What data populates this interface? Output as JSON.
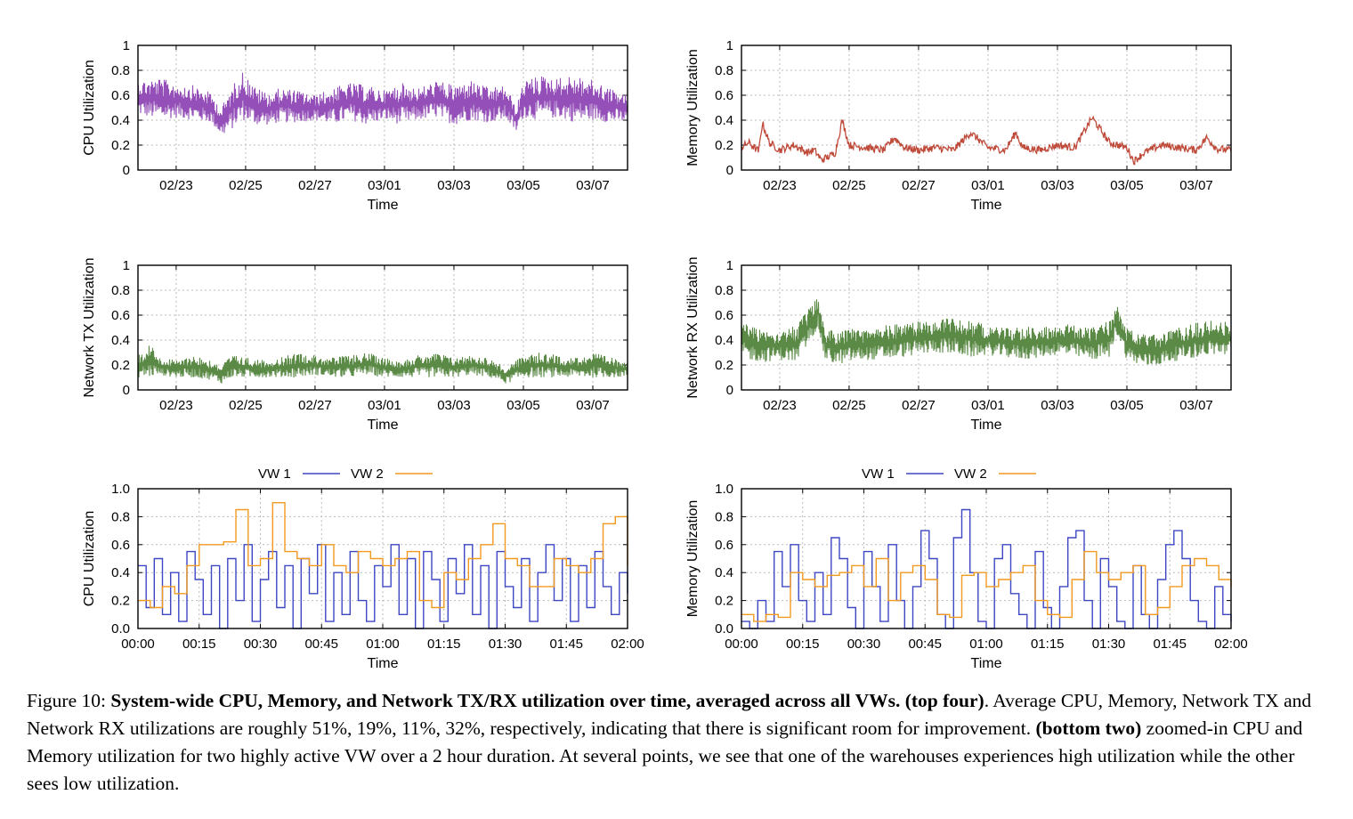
{
  "chart_data": [
    {
      "id": "cpu",
      "type": "line",
      "xlabel": "Time",
      "ylabel": "CPU Utilization",
      "ylim": [
        0,
        1
      ],
      "yticks": [
        "0",
        "0.2",
        "0.4",
        "0.6",
        "0.8",
        "1"
      ],
      "xticks": [
        "02/23",
        "02/25",
        "02/27",
        "03/01",
        "03/03",
        "03/05",
        "03/07"
      ],
      "xlim_days": [
        -1.1,
        13
      ],
      "grid": true,
      "series": [
        {
          "color": "#9450b8",
          "band": true,
          "x": [
            -1.1,
            -0.5,
            0,
            0.5,
            1,
            1.3,
            1.5,
            1.9,
            2.3,
            2.7,
            3,
            3.5,
            4,
            4.5,
            5,
            5.5,
            6,
            6.5,
            7,
            7.5,
            8,
            8.5,
            9,
            9.5,
            9.8,
            10,
            10.5,
            11,
            11.5,
            12,
            12.5,
            13
          ],
          "low": [
            0.44,
            0.4,
            0.42,
            0.4,
            0.38,
            0.27,
            0.3,
            0.4,
            0.36,
            0.36,
            0.38,
            0.38,
            0.4,
            0.36,
            0.4,
            0.36,
            0.4,
            0.36,
            0.4,
            0.42,
            0.36,
            0.4,
            0.38,
            0.4,
            0.3,
            0.42,
            0.4,
            0.42,
            0.38,
            0.4,
            0.38,
            0.38
          ],
          "high": [
            0.72,
            0.74,
            0.7,
            0.68,
            0.62,
            0.5,
            0.62,
            0.8,
            0.66,
            0.62,
            0.66,
            0.64,
            0.6,
            0.66,
            0.7,
            0.68,
            0.64,
            0.7,
            0.66,
            0.72,
            0.68,
            0.72,
            0.66,
            0.68,
            0.5,
            0.72,
            0.76,
            0.74,
            0.76,
            0.72,
            0.66,
            0.6
          ]
        }
      ]
    },
    {
      "id": "mem",
      "type": "line",
      "xlabel": "Time",
      "ylabel": "Memory Utilization",
      "ylim": [
        0,
        1
      ],
      "yticks": [
        "0",
        "0.2",
        "0.4",
        "0.6",
        "0.8",
        "1"
      ],
      "xticks": [
        "02/23",
        "02/25",
        "02/27",
        "03/01",
        "03/03",
        "03/05",
        "03/07"
      ],
      "xlim_days": [
        -1.1,
        13
      ],
      "grid": true,
      "series": [
        {
          "color": "#bf4a3a",
          "band": false,
          "x": [
            -1.1,
            -0.9,
            -0.6,
            -0.5,
            -0.3,
            0,
            0.4,
            0.8,
            1,
            1.2,
            1.5,
            1.6,
            1.8,
            2,
            2.5,
            3,
            3.3,
            3.6,
            4,
            4.5,
            5,
            5.5,
            6,
            6.5,
            6.8,
            7,
            7.5,
            8,
            8.5,
            9,
            9.5,
            10,
            10.2,
            10.5,
            11,
            11.5,
            12,
            12.3,
            12.6,
            13
          ],
          "y": [
            0.18,
            0.22,
            0.15,
            0.38,
            0.22,
            0.16,
            0.2,
            0.14,
            0.16,
            0.08,
            0.12,
            0.14,
            0.4,
            0.2,
            0.18,
            0.16,
            0.26,
            0.18,
            0.16,
            0.18,
            0.16,
            0.3,
            0.18,
            0.16,
            0.3,
            0.18,
            0.16,
            0.2,
            0.18,
            0.42,
            0.22,
            0.18,
            0.07,
            0.14,
            0.2,
            0.18,
            0.16,
            0.26,
            0.17,
            0.16
          ]
        }
      ]
    },
    {
      "id": "tx",
      "type": "line",
      "xlabel": "Time",
      "ylabel": "Network TX Utilization",
      "ylim": [
        0,
        1
      ],
      "yticks": [
        "0",
        "0.2",
        "0.4",
        "0.6",
        "0.8",
        "1"
      ],
      "xticks": [
        "02/23",
        "02/25",
        "02/27",
        "03/01",
        "03/03",
        "03/05",
        "03/07"
      ],
      "xlim_days": [
        -1.1,
        13
      ],
      "grid": true,
      "series": [
        {
          "color": "#5a8a45",
          "band": true,
          "x": [
            -1.1,
            -0.7,
            -0.5,
            0,
            0.5,
            1,
            1.3,
            1.6,
            2,
            2.5,
            3,
            3.5,
            4,
            4.5,
            5,
            5.5,
            6,
            6.5,
            7,
            7.5,
            8,
            8.5,
            9,
            9.5,
            10,
            10.5,
            11,
            11.5,
            12,
            12.5,
            13
          ],
          "low": [
            0.1,
            0.1,
            0.12,
            0.1,
            0.1,
            0.08,
            0.05,
            0.1,
            0.1,
            0.1,
            0.1,
            0.1,
            0.12,
            0.1,
            0.1,
            0.12,
            0.1,
            0.1,
            0.1,
            0.1,
            0.1,
            0.12,
            0.1,
            0.05,
            0.1,
            0.1,
            0.1,
            0.1,
            0.1,
            0.1,
            0.1
          ],
          "high": [
            0.28,
            0.38,
            0.26,
            0.24,
            0.28,
            0.24,
            0.2,
            0.28,
            0.26,
            0.24,
            0.26,
            0.3,
            0.28,
            0.26,
            0.28,
            0.3,
            0.26,
            0.24,
            0.28,
            0.3,
            0.26,
            0.28,
            0.26,
            0.18,
            0.28,
            0.3,
            0.28,
            0.26,
            0.3,
            0.26,
            0.24
          ]
        }
      ]
    },
    {
      "id": "rx",
      "type": "line",
      "xlabel": "Time",
      "ylabel": "Network RX Utilization",
      "ylim": [
        0,
        1
      ],
      "yticks": [
        "0",
        "0.2",
        "0.4",
        "0.6",
        "0.8",
        "1"
      ],
      "xticks": [
        "02/23",
        "02/25",
        "02/27",
        "03/01",
        "03/03",
        "03/05",
        "03/07"
      ],
      "xlim_days": [
        -1.1,
        13
      ],
      "grid": true,
      "series": [
        {
          "color": "#5a8a45",
          "band": true,
          "x": [
            -1.1,
            -0.5,
            0,
            0.5,
            0.9,
            1.1,
            1.3,
            1.6,
            2,
            2.5,
            3,
            3.5,
            4,
            4.5,
            5,
            5.5,
            6,
            6.5,
            7,
            7.5,
            8,
            8.5,
            9,
            9.5,
            9.7,
            10,
            10.3,
            10.6,
            11,
            11.5,
            12,
            12.5,
            13
          ],
          "low": [
            0.25,
            0.22,
            0.24,
            0.22,
            0.4,
            0.5,
            0.24,
            0.2,
            0.22,
            0.24,
            0.24,
            0.26,
            0.28,
            0.3,
            0.28,
            0.26,
            0.28,
            0.26,
            0.24,
            0.26,
            0.28,
            0.26,
            0.24,
            0.26,
            0.45,
            0.24,
            0.2,
            0.18,
            0.2,
            0.24,
            0.26,
            0.28,
            0.28
          ],
          "high": [
            0.55,
            0.5,
            0.48,
            0.52,
            0.68,
            0.75,
            0.5,
            0.48,
            0.5,
            0.48,
            0.52,
            0.54,
            0.55,
            0.56,
            0.6,
            0.56,
            0.52,
            0.5,
            0.52,
            0.5,
            0.54,
            0.52,
            0.5,
            0.56,
            0.7,
            0.5,
            0.46,
            0.44,
            0.46,
            0.5,
            0.54,
            0.56,
            0.54
          ]
        }
      ]
    },
    {
      "id": "zcpu",
      "type": "line",
      "xlabel": "Time",
      "ylabel": "CPU Utilization",
      "ylim": [
        0,
        1
      ],
      "yticks": [
        "0.0",
        "0.2",
        "0.4",
        "0.6",
        "0.8",
        "1.0"
      ],
      "xticks": [
        "00:00",
        "00:15",
        "00:30",
        "00:45",
        "01:00",
        "01:15",
        "01:30",
        "01:45",
        "02:00"
      ],
      "xlim_minutes": [
        0,
        120
      ],
      "grid": true,
      "legend": "top-center",
      "series": [
        {
          "name": "VW 1",
          "color": "#3d47c4",
          "step": true,
          "x": [
            0,
            2,
            4,
            6,
            8,
            10,
            12,
            14,
            16,
            18,
            20,
            22,
            24,
            26,
            28,
            30,
            32,
            34,
            36,
            38,
            40,
            42,
            44,
            46,
            48,
            50,
            52,
            54,
            56,
            58,
            60,
            62,
            64,
            66,
            68,
            70,
            72,
            74,
            76,
            78,
            80,
            82,
            84,
            86,
            88,
            90,
            92,
            94,
            96,
            98,
            100,
            102,
            104,
            106,
            108,
            110,
            112,
            114,
            116,
            118,
            120
          ],
          "y": [
            0.45,
            0.15,
            0.5,
            0.1,
            0.4,
            0.05,
            0.55,
            0.35,
            0.1,
            0.45,
            0.0,
            0.5,
            0.2,
            0.6,
            0.05,
            0.35,
            0.55,
            0.15,
            0.45,
            0.0,
            0.5,
            0.25,
            0.6,
            0.05,
            0.4,
            0.1,
            0.55,
            0.2,
            0.05,
            0.45,
            0.3,
            0.6,
            0.1,
            0.5,
            0.0,
            0.55,
            0.35,
            0.05,
            0.5,
            0.25,
            0.6,
            0.1,
            0.45,
            0.0,
            0.55,
            0.3,
            0.15,
            0.5,
            0.05,
            0.4,
            0.6,
            0.2,
            0.5,
            0.05,
            0.45,
            0.15,
            0.55,
            0.3,
            0.1,
            0.4,
            0.25
          ]
        },
        {
          "name": "VW 2",
          "color": "#f29a20",
          "step": true,
          "x": [
            0,
            3,
            6,
            9,
            12,
            15,
            18,
            21,
            24,
            27,
            30,
            33,
            36,
            39,
            42,
            45,
            48,
            51,
            54,
            57,
            60,
            63,
            66,
            69,
            72,
            75,
            78,
            81,
            84,
            87,
            90,
            93,
            96,
            99,
            102,
            105,
            108,
            111,
            114,
            117,
            120
          ],
          "y": [
            0.2,
            0.15,
            0.3,
            0.25,
            0.45,
            0.6,
            0.6,
            0.62,
            0.85,
            0.45,
            0.5,
            0.9,
            0.55,
            0.5,
            0.45,
            0.6,
            0.45,
            0.4,
            0.55,
            0.5,
            0.45,
            0.5,
            0.55,
            0.2,
            0.15,
            0.4,
            0.35,
            0.5,
            0.6,
            0.75,
            0.5,
            0.45,
            0.3,
            0.3,
            0.5,
            0.45,
            0.4,
            0.5,
            0.75,
            0.8,
            0.45
          ]
        }
      ]
    },
    {
      "id": "zmem",
      "type": "line",
      "xlabel": "Time",
      "ylabel": "Memory Utilization",
      "ylim": [
        0,
        1
      ],
      "yticks": [
        "0.0",
        "0.2",
        "0.4",
        "0.6",
        "0.8",
        "1.0"
      ],
      "xticks": [
        "00:00",
        "00:15",
        "00:30",
        "00:45",
        "01:00",
        "01:15",
        "01:30",
        "01:45",
        "02:00"
      ],
      "xlim_minutes": [
        0,
        120
      ],
      "grid": true,
      "legend": "top-center",
      "series": [
        {
          "name": "VW 1",
          "color": "#3d47c4",
          "step": true,
          "x": [
            0,
            2,
            4,
            6,
            8,
            10,
            12,
            14,
            16,
            18,
            20,
            22,
            24,
            26,
            28,
            30,
            32,
            34,
            36,
            38,
            40,
            42,
            44,
            46,
            48,
            50,
            52,
            54,
            56,
            58,
            60,
            62,
            64,
            66,
            68,
            70,
            72,
            74,
            76,
            78,
            80,
            82,
            84,
            86,
            88,
            90,
            92,
            94,
            96,
            98,
            100,
            102,
            104,
            106,
            108,
            110,
            112,
            114,
            116,
            118,
            120
          ],
          "y": [
            0.05,
            0.0,
            0.2,
            0.05,
            0.55,
            0.3,
            0.6,
            0.2,
            0.05,
            0.4,
            0.1,
            0.65,
            0.5,
            0.15,
            0.0,
            0.55,
            0.3,
            0.05,
            0.6,
            0.2,
            0.0,
            0.3,
            0.7,
            0.5,
            0.1,
            0.0,
            0.65,
            0.85,
            0.4,
            0.05,
            0.0,
            0.5,
            0.6,
            0.25,
            0.1,
            0.0,
            0.55,
            0.15,
            0.0,
            0.3,
            0.65,
            0.7,
            0.2,
            0.0,
            0.5,
            0.3,
            0.05,
            0.0,
            0.45,
            0.1,
            0.0,
            0.35,
            0.6,
            0.7,
            0.5,
            0.2,
            0.05,
            0.0,
            0.3,
            0.1,
            0.05
          ]
        },
        {
          "name": "VW 2",
          "color": "#f29a20",
          "step": true,
          "x": [
            0,
            3,
            6,
            9,
            12,
            15,
            18,
            21,
            24,
            27,
            30,
            33,
            36,
            39,
            42,
            45,
            48,
            51,
            54,
            57,
            60,
            63,
            66,
            69,
            72,
            75,
            78,
            81,
            84,
            87,
            90,
            93,
            96,
            99,
            102,
            105,
            108,
            111,
            114,
            117,
            120
          ],
          "y": [
            0.1,
            0.05,
            0.1,
            0.08,
            0.4,
            0.35,
            0.3,
            0.38,
            0.4,
            0.45,
            0.3,
            0.5,
            0.2,
            0.4,
            0.45,
            0.35,
            0.1,
            0.08,
            0.38,
            0.4,
            0.3,
            0.35,
            0.4,
            0.45,
            0.2,
            0.1,
            0.08,
            0.35,
            0.55,
            0.4,
            0.35,
            0.4,
            0.45,
            0.1,
            0.15,
            0.3,
            0.45,
            0.5,
            0.45,
            0.35,
            0.3
          ]
        }
      ]
    }
  ],
  "caption": {
    "prefix": "Figure 10: ",
    "bold1": "System-wide CPU, Memory, and Network TX/RX utilization over time, averaged across all VWs. (top four)",
    "text1": ". Average CPU, Memory, Network TX and Network RX utilizations are roughly 51%, 19%, 11%, 32%, respectively, indicating that there is significant room for improvement. ",
    "bold2": "(bottom two)",
    "text2": " zoomed-in CPU and Memory utilization for two highly active VW over a 2 hour duration. At several points, we see that one of the warehouses experiences high utilization while the other sees low utilization."
  }
}
